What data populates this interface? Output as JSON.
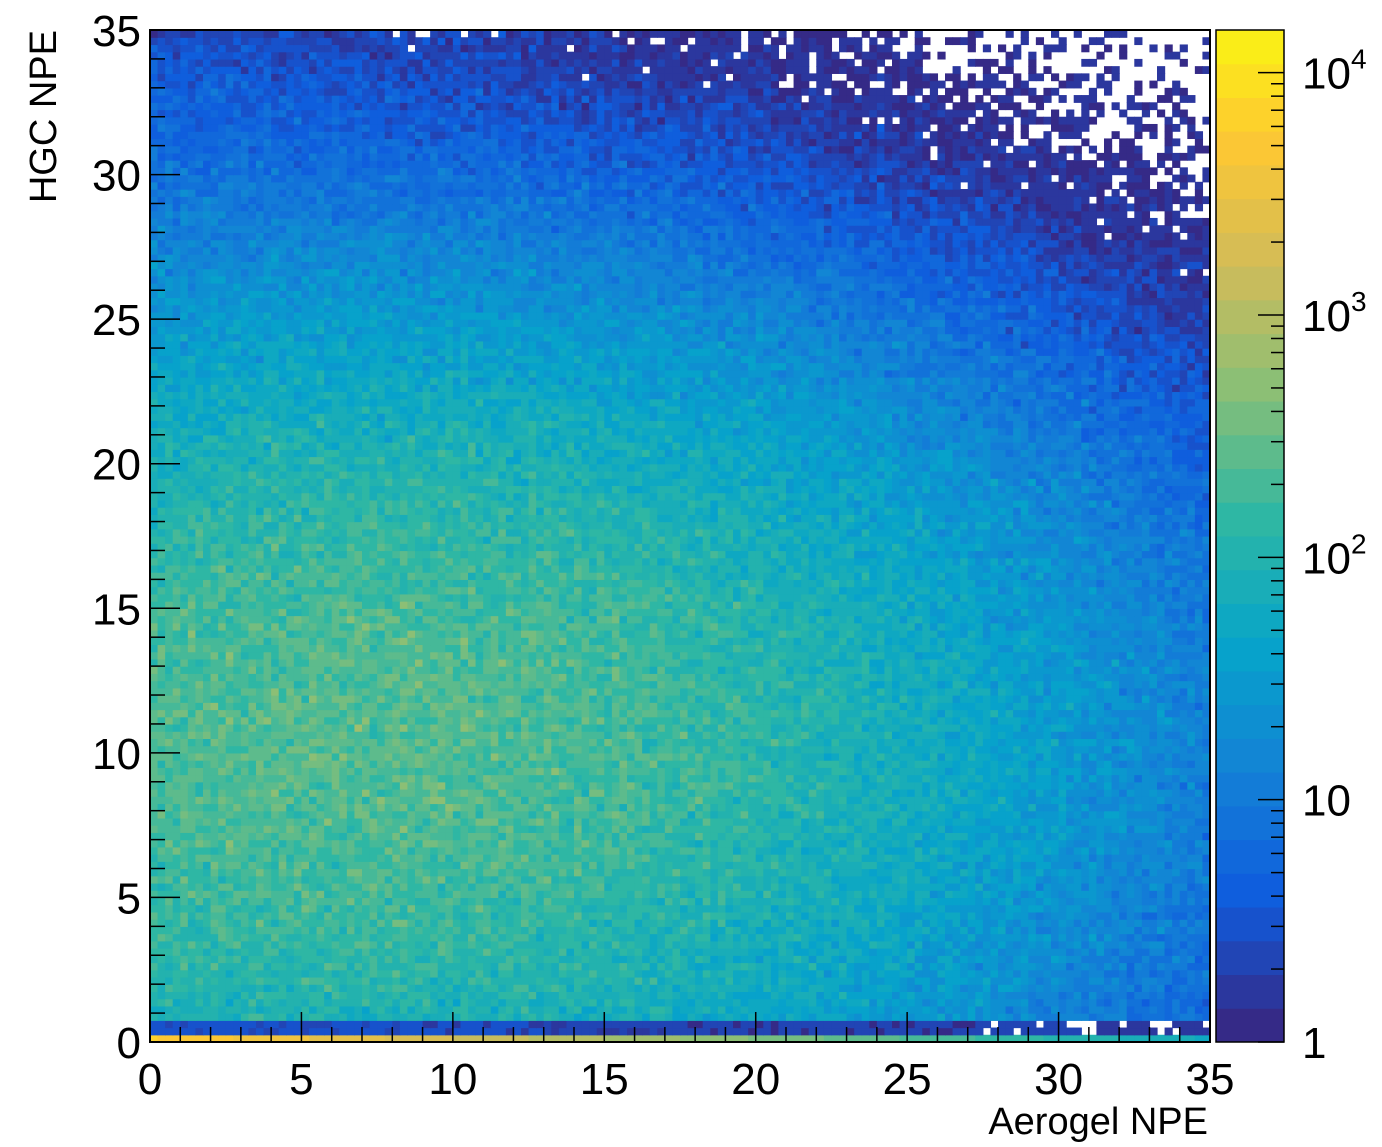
{
  "chart_data": {
    "type": "heatmap",
    "title": "",
    "xlabel": "Aerogel NPE",
    "ylabel": "HGC NPE",
    "xlim": [
      0,
      35
    ],
    "ylim": [
      0,
      35
    ],
    "bins": {
      "nx": 140,
      "ny": 140
    },
    "x_ticks": [
      "0",
      "5",
      "10",
      "15",
      "20",
      "25",
      "30",
      "35"
    ],
    "y_ticks": [
      "0",
      "5",
      "10",
      "15",
      "20",
      "25",
      "30",
      "35"
    ],
    "z_scale": "log",
    "zlim": [
      1,
      15000
    ],
    "z_ticks": [
      {
        "value": 1,
        "base": "1",
        "exp": ""
      },
      {
        "value": 10,
        "base": "10",
        "exp": ""
      },
      {
        "value": 100,
        "base": "10",
        "exp": "2"
      },
      {
        "value": 1000,
        "base": "10",
        "exp": "3"
      },
      {
        "value": 10000,
        "base": "10",
        "exp": "4"
      }
    ],
    "description_features": {
      "main_peak": {
        "x": 7.5,
        "y": 10.5,
        "peak_count": 230
      },
      "row_y0_counts": {
        "x_start": 0,
        "x_end": 35,
        "count_start": 6000,
        "count_end": 60
      }
    },
    "palette": [
      "#352a87",
      "#0f5cdd",
      "#1481d6",
      "#06a4ca",
      "#2eb7a4",
      "#87bf77",
      "#d1bb59",
      "#fec832",
      "#f9fb0e"
    ],
    "grid": false,
    "legend": "none"
  }
}
